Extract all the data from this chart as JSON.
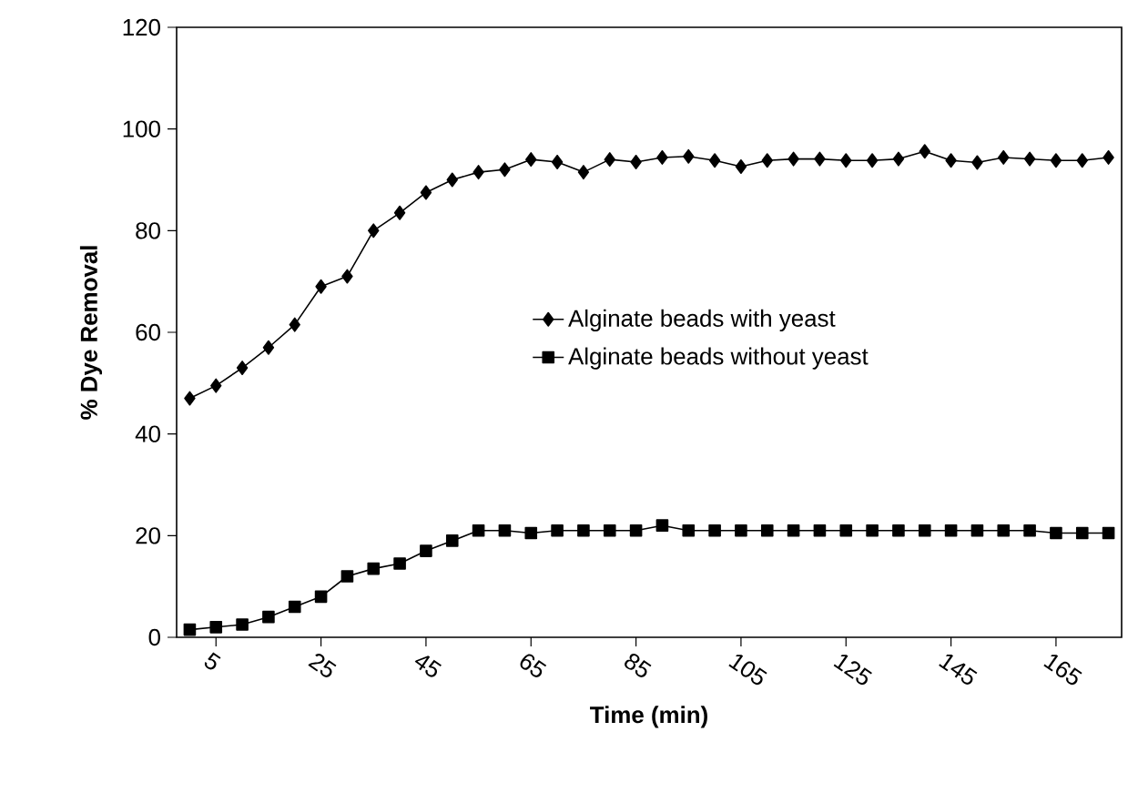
{
  "chart_data": {
    "type": "line",
    "xlabel": "Time (min)",
    "ylabel": "% Dye Removal",
    "x": [
      0,
      5,
      10,
      15,
      20,
      25,
      30,
      35,
      40,
      45,
      50,
      55,
      60,
      65,
      70,
      75,
      80,
      85,
      90,
      95,
      100,
      105,
      110,
      115,
      120,
      125,
      130,
      135,
      140,
      145,
      150,
      155,
      160,
      165,
      170,
      175
    ],
    "series": [
      {
        "name": "Alginate beads with yeast",
        "color": "#000000",
        "marker": "diamond",
        "values": [
          47,
          49.5,
          53,
          57,
          61.5,
          69,
          71,
          80,
          83.5,
          87.5,
          90,
          91.5,
          92,
          94,
          93.5,
          91.5,
          94,
          93.5,
          94.4,
          94.6,
          93.8,
          92.6,
          93.8,
          94.1,
          94.1,
          93.8,
          93.8,
          94.1,
          95.6,
          93.8,
          93.4,
          94.4,
          94.1,
          93.8,
          93.8,
          94.4
        ]
      },
      {
        "name": "Alginate beads without yeast",
        "color": "#000000",
        "marker": "square",
        "values": [
          1.5,
          2,
          2.5,
          4,
          6,
          8,
          12,
          13.5,
          14.5,
          17,
          19,
          21,
          21,
          20.5,
          21,
          21,
          21,
          21,
          22,
          21,
          21,
          21,
          21,
          21,
          21,
          21,
          21,
          21,
          21,
          21,
          21,
          21,
          21,
          20.5,
          20.5,
          20.5
        ]
      }
    ],
    "xlim": [
      -2.5,
      177.5
    ],
    "xticks": [
      5,
      25,
      45,
      65,
      85,
      105,
      125,
      145,
      165
    ],
    "ylim": [
      0,
      120
    ],
    "yticks": [
      0,
      20,
      40,
      60,
      80,
      100,
      120
    ],
    "grid": false,
    "legend": "right",
    "line_style": "solid"
  }
}
